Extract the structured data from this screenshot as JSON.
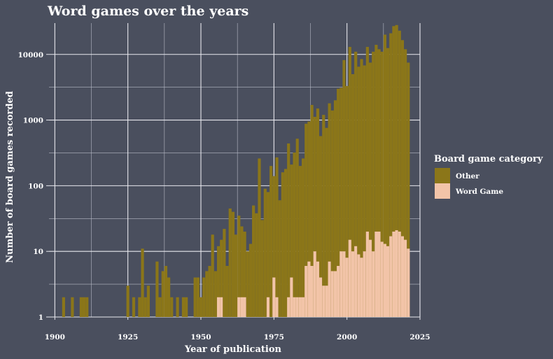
{
  "chart_data": {
    "type": "bar",
    "stacked": true,
    "title": "Word games over the years",
    "xlabel": "Year of publication",
    "ylabel": "Number of board games recorded",
    "y_scale": "log10",
    "xlim": [
      1898,
      2025
    ],
    "ylim": [
      1,
      30000
    ],
    "x_ticks": [
      1900,
      1925,
      1950,
      1975,
      2000,
      2025
    ],
    "y_ticks": [
      1,
      10,
      100,
      1000,
      10000
    ],
    "y_tick_labels": [
      "1",
      "10",
      "100",
      "1000",
      "10000"
    ],
    "grid": true,
    "legend": {
      "title": "Board game category",
      "position": "right"
    },
    "x": [
      1903,
      1906,
      1909,
      1910,
      1911,
      1925,
      1927,
      1929,
      1930,
      1931,
      1932,
      1935,
      1936,
      1937,
      1938,
      1939,
      1940,
      1942,
      1944,
      1945,
      1948,
      1949,
      1950,
      1951,
      1952,
      1953,
      1954,
      1955,
      1956,
      1957,
      1958,
      1959,
      1960,
      1961,
      1962,
      1963,
      1964,
      1965,
      1966,
      1967,
      1968,
      1969,
      1970,
      1971,
      1972,
      1973,
      1974,
      1975,
      1976,
      1977,
      1978,
      1979,
      1980,
      1981,
      1982,
      1983,
      1984,
      1985,
      1986,
      1987,
      1988,
      1989,
      1990,
      1991,
      1992,
      1993,
      1994,
      1995,
      1996,
      1997,
      1998,
      1999,
      2000,
      2001,
      2002,
      2003,
      2004,
      2005,
      2006,
      2007,
      2008,
      2009,
      2010,
      2011,
      2012,
      2013,
      2014,
      2015,
      2016,
      2017,
      2018,
      2019,
      2020,
      2021
    ],
    "series": [
      {
        "name": "Other",
        "color": "#8b7619",
        "values": [
          2,
          2,
          2,
          2,
          2,
          3,
          2,
          2,
          11,
          2,
          3,
          7,
          2,
          5,
          6,
          4,
          2,
          2,
          2,
          2,
          4,
          4,
          2,
          4,
          5,
          6,
          18,
          5,
          12,
          15,
          22,
          6,
          45,
          40,
          18,
          35,
          24,
          20,
          10,
          13,
          50,
          38,
          260,
          30,
          90,
          80,
          200,
          140,
          270,
          60,
          160,
          180,
          440,
          210,
          320,
          520,
          200,
          260,
          880,
          950,
          1700,
          1120,
          1500,
          570,
          1200,
          760,
          1800,
          1400,
          2000,
          3000,
          3100,
          8200,
          3300,
          13000,
          5000,
          11000,
          6500,
          8500,
          6800,
          13000,
          7500,
          11000,
          14000,
          12000,
          11000,
          20000,
          12500,
          21000,
          27000,
          28000,
          23000,
          16500,
          12000,
          7500
        ]
      },
      {
        "name": "Word Game",
        "color": "#f2c4a8",
        "values": [
          0,
          0,
          0,
          0,
          0,
          0,
          0,
          0,
          0,
          0,
          0,
          0,
          0,
          0,
          0,
          0,
          0,
          0,
          0,
          0,
          0,
          0,
          0,
          0,
          0,
          0,
          0,
          0,
          2,
          2,
          0,
          0,
          0,
          0,
          0,
          2,
          2,
          2,
          0,
          0,
          0,
          0,
          0,
          0,
          0,
          2,
          0,
          4,
          2,
          0,
          0,
          0,
          2,
          4,
          2,
          2,
          2,
          2,
          6,
          7,
          6,
          10,
          7,
          4,
          3,
          3,
          7,
          5,
          5,
          6,
          10,
          10,
          8,
          15,
          10,
          12,
          9,
          8,
          10,
          20,
          15,
          10,
          20,
          20,
          14,
          13,
          12,
          17,
          20,
          21,
          20,
          17,
          15,
          11
        ]
      }
    ]
  }
}
